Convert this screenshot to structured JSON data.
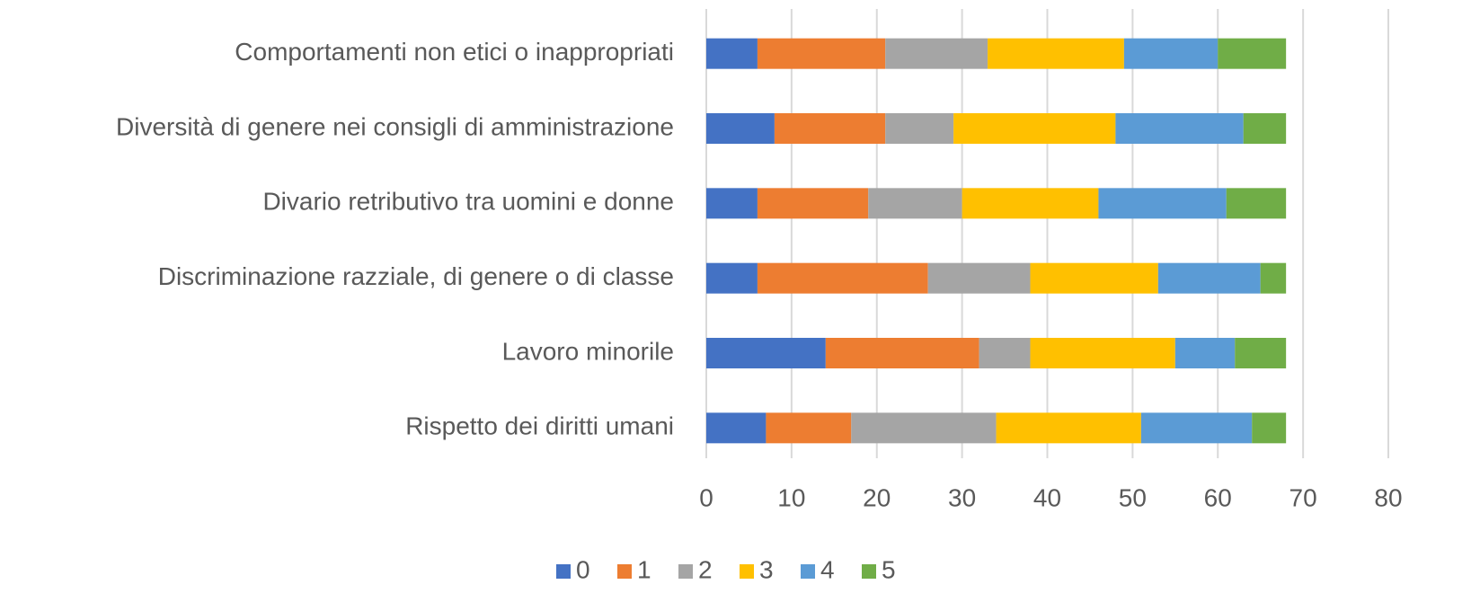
{
  "chart_data": {
    "type": "stacked_barh",
    "categories": [
      "Comportamenti non etici o inappropriati",
      "Diversità di genere nei consigli di amministrazione",
      "Divario retributivo tra uomini e donne",
      "Discriminazione razziale, di genere o di classe",
      "Lavoro minorile",
      "Rispetto dei diritti umani"
    ],
    "series": [
      {
        "name": "0",
        "color": "#4472c4",
        "values": [
          6,
          8,
          6,
          6,
          14,
          7
        ]
      },
      {
        "name": "1",
        "color": "#ed7d31",
        "values": [
          15,
          13,
          13,
          20,
          18,
          10
        ]
      },
      {
        "name": "2",
        "color": "#a5a5a5",
        "values": [
          12,
          8,
          11,
          12,
          6,
          17
        ]
      },
      {
        "name": "3",
        "color": "#ffc000",
        "values": [
          16,
          19,
          16,
          15,
          17,
          17
        ]
      },
      {
        "name": "4",
        "color": "#5b9bd5",
        "values": [
          11,
          15,
          15,
          12,
          7,
          13
        ]
      },
      {
        "name": "5",
        "color": "#70ad47",
        "values": [
          8,
          5,
          7,
          3,
          6,
          4
        ]
      }
    ],
    "xlim": [
      0,
      80
    ],
    "xticks": [
      0,
      10,
      20,
      30,
      40,
      50,
      60,
      70,
      80
    ],
    "grid": true,
    "legend": "bottom"
  }
}
